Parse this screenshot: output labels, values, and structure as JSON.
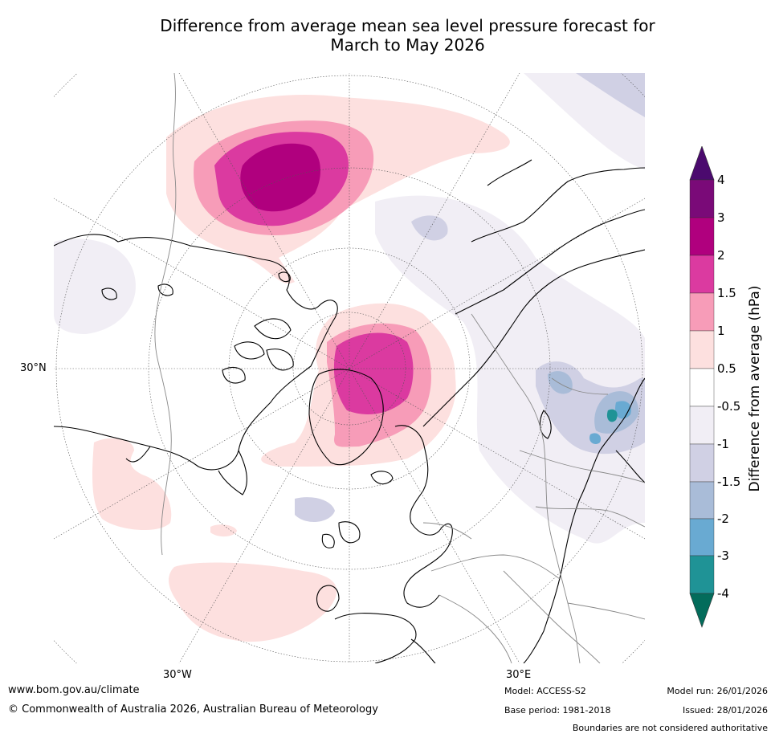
{
  "title": {
    "line1": "Difference from average mean sea level pressure forecast for",
    "line2": "March to May 2026"
  },
  "map": {
    "labels": {
      "lat_30n": "30°N",
      "lon_30w": "30°W",
      "lon_30e": "30°E"
    }
  },
  "colorbar": {
    "title": "Difference from average (hPa)",
    "ticks": [
      "4",
      "3",
      "2",
      "1.5",
      "1",
      "0.5",
      "-0.5",
      "-1",
      "-1.5",
      "-2",
      "-3",
      "-4"
    ],
    "colors": {
      "over": "#4b0a6e",
      "b_3_4": "#7a0a78",
      "b_2_3": "#b0007e",
      "b_15_2": "#db3aa0",
      "b_1_15": "#f79cb8",
      "b_05_1": "#fde0df",
      "b_n05_05": "#ffffff",
      "b_n1_n05": "#f1eef5",
      "b_n15_n1": "#d0d0e4",
      "b_n2_n15": "#a9bcd8",
      "b_n3_n2": "#69aad2",
      "b_n4_n3": "#1f9396",
      "under": "#036c5b"
    }
  },
  "footer": {
    "url": "www.bom.gov.au/climate",
    "copyright": "© Commonwealth of Australia 2026, Australian Bureau of Meteorology",
    "model": "Model: ACCESS-S2",
    "base_period": "Base period: 1981-2018",
    "model_run": "Model run: 26/01/2026",
    "issued": "Issued: 28/01/2026",
    "disclaimer": "Boundaries are not considered authoritative"
  }
}
